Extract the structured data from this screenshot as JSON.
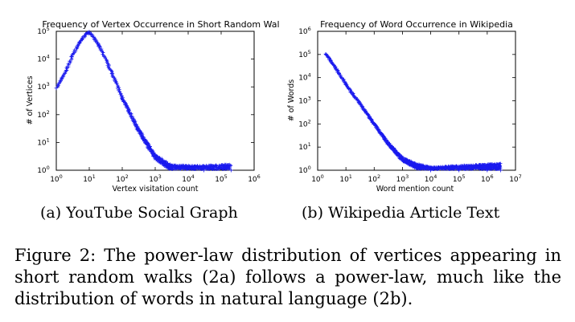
{
  "chart_data": [
    {
      "type": "scatter",
      "title": "Frequency of Vertex Occurrence in Short Random Walks",
      "xlabel": "Vertex visitation count",
      "ylabel": "# of Vertices",
      "x_scale": "log",
      "y_scale": "log",
      "xlim": [
        1,
        1000000
      ],
      "ylim": [
        1,
        100000
      ],
      "x_ticks": [
        "10^0",
        "10^1",
        "10^2",
        "10^3",
        "10^4",
        "10^5",
        "10^6"
      ],
      "y_ticks": [
        "10^0",
        "10^1",
        "10^2",
        "10^3",
        "10^4",
        "10^5"
      ],
      "marker": "+",
      "color": "#1a1aee",
      "points": [
        {
          "x": 1,
          "y": 900
        },
        {
          "x": 2,
          "y": 4000
        },
        {
          "x": 3,
          "y": 12000
        },
        {
          "x": 5,
          "y": 40000
        },
        {
          "x": 8,
          "y": 80000
        },
        {
          "x": 10,
          "y": 95000
        },
        {
          "x": 20,
          "y": 30000
        },
        {
          "x": 50,
          "y": 3000
        },
        {
          "x": 100,
          "y": 400
        },
        {
          "x": 300,
          "y": 30
        },
        {
          "x": 1000,
          "y": 3
        },
        {
          "x": 3000,
          "y": 1.2
        },
        {
          "x": 30000,
          "y": 1
        },
        {
          "x": 200000,
          "y": 1
        }
      ]
    },
    {
      "type": "scatter",
      "title": "Frequency of Word Occurrence in Wikipedia",
      "xlabel": "Word mention count",
      "ylabel": "# of Words",
      "x_scale": "log",
      "y_scale": "log",
      "xlim": [
        1,
        10000000
      ],
      "ylim": [
        1,
        1000000
      ],
      "x_ticks": [
        "10^0",
        "10^1",
        "10^2",
        "10^3",
        "10^4",
        "10^5",
        "10^6",
        "10^7"
      ],
      "y_ticks": [
        "10^0",
        "10^1",
        "10^2",
        "10^3",
        "10^4",
        "10^5",
        "10^6"
      ],
      "marker": "+",
      "color": "#1a1aee",
      "points": [
        {
          "x": 2,
          "y": 100000
        },
        {
          "x": 5,
          "y": 20000
        },
        {
          "x": 10,
          "y": 5000
        },
        {
          "x": 30,
          "y": 800
        },
        {
          "x": 100,
          "y": 100
        },
        {
          "x": 300,
          "y": 15
        },
        {
          "x": 1000,
          "y": 3
        },
        {
          "x": 3000,
          "y": 1.5
        },
        {
          "x": 10000,
          "y": 1
        },
        {
          "x": 100000,
          "y": 1
        },
        {
          "x": 1000000,
          "y": 1
        },
        {
          "x": 3000000,
          "y": 1
        }
      ]
    }
  ],
  "subcaptions": {
    "a": "(a) YouTube Social Graph",
    "b": "(b) Wikipedia Article Text"
  },
  "caption": "Figure 2: The power-law distribution of vertices appearing in short random walks (2a) follows a power-law, much like the distribution of words in natural language (2b)."
}
